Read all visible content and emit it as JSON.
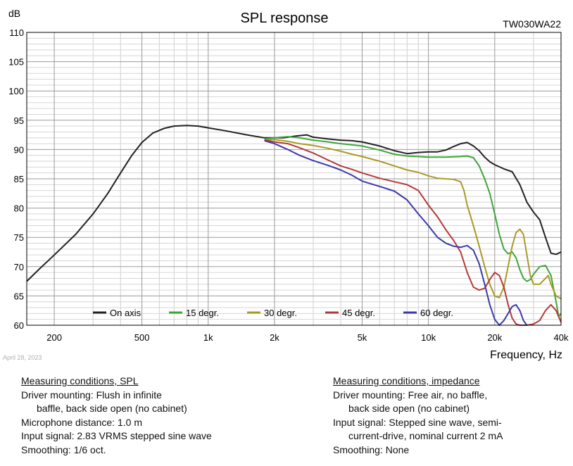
{
  "date_note": "April 28, 2023",
  "conditions_spl": {
    "heading": "Measuring conditions, SPL",
    "lines": [
      {
        "text": "Driver mounting: Flush in infinite",
        "indent": false
      },
      {
        "text": "baffle, back side open (no cabinet)",
        "indent": true
      },
      {
        "text": "Microphone distance: 1.0 m",
        "indent": false
      },
      {
        "text": "Input signal: 2.83 VRMS stepped sine wave",
        "indent": false
      },
      {
        "text": "Smoothing: 1/6 oct.",
        "indent": false
      }
    ]
  },
  "conditions_impedance": {
    "heading": "Measuring conditions, impedance",
    "lines": [
      {
        "text": "Driver mounting: Free air, no baffle,",
        "indent": false
      },
      {
        "text": "back side open (no cabinet)",
        "indent": true
      },
      {
        "text": "Input signal: Stepped sine wave, semi-",
        "indent": false
      },
      {
        "text": "current-drive, nominal current 2 mA",
        "indent": true
      },
      {
        "text": "Smoothing: None",
        "indent": false
      }
    ]
  },
  "chart_data": {
    "type": "line",
    "title": "SPL response",
    "model": "TW030WA22",
    "ylabel": "dB",
    "xlabel": "Frequency, Hz",
    "xscale": "log",
    "xlim": [
      150,
      40000
    ],
    "ylim": [
      60,
      110
    ],
    "grid": true,
    "legend_position": "bottom-left",
    "x_ticks": [
      {
        "value": 200,
        "label": "200"
      },
      {
        "value": 500,
        "label": "500"
      },
      {
        "value": 1000,
        "label": "1k"
      },
      {
        "value": 2000,
        "label": "2k"
      },
      {
        "value": 5000,
        "label": "5k"
      },
      {
        "value": 10000,
        "label": "10k"
      },
      {
        "value": 20000,
        "label": "20k"
      },
      {
        "value": 40000,
        "label": "40k"
      }
    ],
    "y_ticks": [
      60,
      65,
      70,
      75,
      80,
      85,
      90,
      95,
      100,
      105,
      110
    ],
    "series": [
      {
        "name": "On axis",
        "color": "#222222",
        "points": [
          [
            150,
            67.5
          ],
          [
            170,
            69.5
          ],
          [
            200,
            72
          ],
          [
            250,
            75.5
          ],
          [
            300,
            79
          ],
          [
            350,
            82.5
          ],
          [
            400,
            86
          ],
          [
            450,
            89
          ],
          [
            500,
            91.2
          ],
          [
            560,
            92.8
          ],
          [
            630,
            93.6
          ],
          [
            700,
            94
          ],
          [
            800,
            94.1
          ],
          [
            900,
            94
          ],
          [
            1000,
            93.7
          ],
          [
            1200,
            93.2
          ],
          [
            1500,
            92.5
          ],
          [
            1800,
            92
          ],
          [
            2000,
            92
          ],
          [
            2200,
            92
          ],
          [
            2500,
            92.3
          ],
          [
            2800,
            92.5
          ],
          [
            3000,
            92.1
          ],
          [
            3500,
            91.8
          ],
          [
            4000,
            91.6
          ],
          [
            4500,
            91.5
          ],
          [
            5000,
            91.3
          ],
          [
            6000,
            90.6
          ],
          [
            7000,
            89.8
          ],
          [
            8000,
            89.3
          ],
          [
            9000,
            89.5
          ],
          [
            10000,
            89.6
          ],
          [
            11000,
            89.6
          ],
          [
            12000,
            89.9
          ],
          [
            13000,
            90.5
          ],
          [
            14000,
            91
          ],
          [
            15000,
            91.2
          ],
          [
            16000,
            90.6
          ],
          [
            17000,
            89.8
          ],
          [
            18000,
            88.7
          ],
          [
            19000,
            87.9
          ],
          [
            20000,
            87.4
          ],
          [
            22000,
            86.7
          ],
          [
            24000,
            86.2
          ],
          [
            26000,
            84
          ],
          [
            28000,
            81
          ],
          [
            30000,
            79.3
          ],
          [
            32000,
            78
          ],
          [
            34000,
            75
          ],
          [
            36000,
            72.3
          ],
          [
            38000,
            72.1
          ],
          [
            40000,
            72.5
          ]
        ]
      },
      {
        "name": "15 degr.",
        "color": "#3da63a",
        "points": [
          [
            1800,
            91.8
          ],
          [
            2000,
            92
          ],
          [
            2300,
            92.2
          ],
          [
            2600,
            92
          ],
          [
            3000,
            91.6
          ],
          [
            3500,
            91.3
          ],
          [
            4000,
            91
          ],
          [
            4500,
            90.8
          ],
          [
            5000,
            90.6
          ],
          [
            6000,
            89.9
          ],
          [
            7000,
            89.2
          ],
          [
            8000,
            88.9
          ],
          [
            9000,
            88.8
          ],
          [
            10000,
            88.7
          ],
          [
            12000,
            88.7
          ],
          [
            14000,
            88.8
          ],
          [
            15000,
            88.9
          ],
          [
            16000,
            88.6
          ],
          [
            17000,
            87.2
          ],
          [
            18000,
            85
          ],
          [
            19000,
            82.5
          ],
          [
            20000,
            79
          ],
          [
            21000,
            75.5
          ],
          [
            22000,
            73
          ],
          [
            23000,
            72.2
          ],
          [
            24000,
            72.5
          ],
          [
            25000,
            71.5
          ],
          [
            26000,
            69.5
          ],
          [
            27000,
            68
          ],
          [
            28000,
            67.5
          ],
          [
            29000,
            67.8
          ],
          [
            30000,
            68.7
          ],
          [
            32000,
            70
          ],
          [
            34000,
            70.2
          ],
          [
            36000,
            68.5
          ],
          [
            38000,
            64
          ],
          [
            39000,
            61.5
          ],
          [
            40000,
            62
          ]
        ]
      },
      {
        "name": "30 degr.",
        "color": "#a99a25",
        "points": [
          [
            1800,
            91.6
          ],
          [
            2000,
            91.7
          ],
          [
            2300,
            91.4
          ],
          [
            2600,
            91
          ],
          [
            3000,
            90.7
          ],
          [
            3500,
            90.2
          ],
          [
            4000,
            89.7
          ],
          [
            4500,
            89.2
          ],
          [
            5000,
            88.8
          ],
          [
            6000,
            88
          ],
          [
            7000,
            87.2
          ],
          [
            8000,
            86.5
          ],
          [
            9000,
            86.1
          ],
          [
            10000,
            85.5
          ],
          [
            11000,
            85.1
          ],
          [
            12000,
            85
          ],
          [
            13000,
            84.9
          ],
          [
            14000,
            84.5
          ],
          [
            14500,
            83
          ],
          [
            15000,
            80.5
          ],
          [
            16000,
            77
          ],
          [
            17000,
            73.5
          ],
          [
            18000,
            70
          ],
          [
            19000,
            67
          ],
          [
            20000,
            65
          ],
          [
            21000,
            64.7
          ],
          [
            22000,
            66.5
          ],
          [
            23000,
            70
          ],
          [
            24000,
            73.5
          ],
          [
            25000,
            75.8
          ],
          [
            26000,
            76.4
          ],
          [
            27000,
            75.5
          ],
          [
            28000,
            72
          ],
          [
            29000,
            68.5
          ],
          [
            30000,
            67
          ],
          [
            32000,
            67
          ],
          [
            34000,
            68
          ],
          [
            35000,
            68.5
          ],
          [
            36000,
            67
          ],
          [
            38000,
            65
          ],
          [
            40000,
            64.5
          ]
        ]
      },
      {
        "name": "45 degr.",
        "color": "#b33a3a",
        "points": [
          [
            1800,
            91.6
          ],
          [
            2000,
            91.3
          ],
          [
            2300,
            91
          ],
          [
            2600,
            90.3
          ],
          [
            3000,
            89.4
          ],
          [
            3500,
            88.2
          ],
          [
            4000,
            87.2
          ],
          [
            4500,
            86.6
          ],
          [
            5000,
            86
          ],
          [
            6000,
            85.1
          ],
          [
            7000,
            84.5
          ],
          [
            8000,
            84
          ],
          [
            9000,
            83
          ],
          [
            10000,
            80.5
          ],
          [
            11000,
            78.5
          ],
          [
            12000,
            76.3
          ],
          [
            13000,
            74.5
          ],
          [
            14000,
            72.5
          ],
          [
            15000,
            69
          ],
          [
            16000,
            66.5
          ],
          [
            17000,
            66
          ],
          [
            18000,
            66.3
          ],
          [
            19000,
            67.8
          ],
          [
            20000,
            69
          ],
          [
            21000,
            68.5
          ],
          [
            22000,
            66.5
          ],
          [
            23000,
            63.5
          ],
          [
            24000,
            61.2
          ],
          [
            25000,
            60.2
          ],
          [
            26000,
            60
          ],
          [
            28000,
            60
          ],
          [
            30000,
            60.2
          ],
          [
            32000,
            60.8
          ],
          [
            34000,
            62.5
          ],
          [
            36000,
            63.5
          ],
          [
            38000,
            62.5
          ],
          [
            40000,
            60.5
          ]
        ]
      },
      {
        "name": "60 degr.",
        "color": "#3a3aad",
        "points": [
          [
            1800,
            91.5
          ],
          [
            2000,
            91
          ],
          [
            2300,
            90
          ],
          [
            2600,
            89
          ],
          [
            3000,
            88.1
          ],
          [
            3500,
            87.3
          ],
          [
            4000,
            86.5
          ],
          [
            4500,
            85.6
          ],
          [
            5000,
            84.6
          ],
          [
            6000,
            83.7
          ],
          [
            7000,
            82.9
          ],
          [
            8000,
            81.4
          ],
          [
            9000,
            79
          ],
          [
            10000,
            77
          ],
          [
            11000,
            75
          ],
          [
            12000,
            74
          ],
          [
            13000,
            73.5
          ],
          [
            14000,
            73.3
          ],
          [
            15000,
            73.6
          ],
          [
            16000,
            72.8
          ],
          [
            17000,
            70.5
          ],
          [
            18000,
            67
          ],
          [
            19000,
            63.5
          ],
          [
            20000,
            61
          ],
          [
            21000,
            60
          ],
          [
            22000,
            60.8
          ],
          [
            23000,
            62
          ],
          [
            24000,
            63.2
          ],
          [
            25000,
            63.5
          ],
          [
            26000,
            62.5
          ],
          [
            27000,
            60.8
          ],
          [
            28000,
            60
          ]
        ]
      }
    ]
  }
}
